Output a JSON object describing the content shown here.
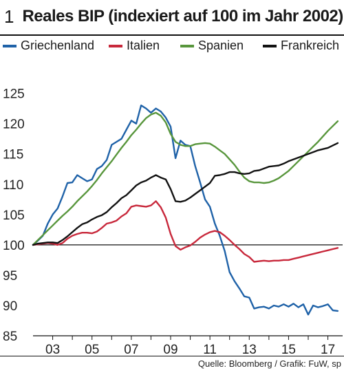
{
  "figure": {
    "number": "1",
    "title": "Reales BIP (indexiert auf 100 im Jahr 2002)",
    "source": "Quelle: Bloomberg / Grafik: FuW, sp"
  },
  "chart_data": {
    "type": "line",
    "title": "Reales BIP (indexiert auf 100 im Jahr 2002)",
    "xlabel": "",
    "ylabel": "",
    "xlim": [
      2002,
      2017.75
    ],
    "ylim": [
      85,
      127
    ],
    "x_ticks": [
      2003,
      2005,
      2007,
      2009,
      2011,
      2013,
      2015,
      2017
    ],
    "x_tick_labels": [
      "03",
      "05",
      "07",
      "09",
      "11",
      "13",
      "15",
      "17"
    ],
    "y_ticks": [
      85,
      90,
      95,
      100,
      105,
      110,
      115,
      120,
      125
    ],
    "y_tick_labels": [
      "85",
      "90",
      "95",
      "100",
      "105",
      "110",
      "115",
      "120",
      "125"
    ],
    "reference_line": 100,
    "grid": false,
    "legend_position": "top",
    "series": [
      {
        "name": "Griechenland",
        "color": "#1f62a8",
        "x": [
          2002,
          2002.25,
          2002.5,
          2002.75,
          2003,
          2003.25,
          2003.5,
          2003.75,
          2004,
          2004.25,
          2004.5,
          2004.75,
          2005,
          2005.25,
          2005.5,
          2005.75,
          2006,
          2006.25,
          2006.5,
          2006.75,
          2007,
          2007.25,
          2007.5,
          2007.75,
          2008,
          2008.25,
          2008.5,
          2008.75,
          2009,
          2009.25,
          2009.5,
          2009.75,
          2010,
          2010.25,
          2010.5,
          2010.75,
          2011,
          2011.25,
          2011.5,
          2011.75,
          2012,
          2012.25,
          2012.5,
          2012.75,
          2013,
          2013.25,
          2013.5,
          2013.75,
          2014,
          2014.25,
          2014.5,
          2014.75,
          2015,
          2015.25,
          2015.5,
          2015.75,
          2016,
          2016.25,
          2016.5,
          2016.75,
          2017,
          2017.25,
          2017.5
        ],
        "y": [
          100,
          100.7,
          101.5,
          103.5,
          105,
          106,
          108,
          110.2,
          110.3,
          111.5,
          111,
          110.5,
          110.8,
          112.5,
          113,
          114,
          116.5,
          117,
          117.5,
          119,
          120.5,
          120,
          123,
          122.5,
          121.8,
          122.5,
          122,
          121,
          119.5,
          114.3,
          117.2,
          116.5,
          116.3,
          113,
          110.3,
          107.5,
          106.3,
          103.5,
          101.5,
          99,
          95.5,
          94,
          92.8,
          91.5,
          91.3,
          89.5,
          89.7,
          89.8,
          89.5,
          90,
          89.8,
          90.2,
          89.8,
          90.3,
          89.7,
          90.2,
          88.5,
          90,
          89.7,
          89.9,
          90.2,
          89.2,
          89.1
        ]
      },
      {
        "name": "Italien",
        "color": "#c8283b",
        "x": [
          2002,
          2002.25,
          2002.5,
          2002.75,
          2003,
          2003.25,
          2003.5,
          2003.75,
          2004,
          2004.25,
          2004.5,
          2004.75,
          2005,
          2005.25,
          2005.5,
          2005.75,
          2006,
          2006.25,
          2006.5,
          2006.75,
          2007,
          2007.25,
          2007.5,
          2007.75,
          2008,
          2008.25,
          2008.5,
          2008.75,
          2009,
          2009.25,
          2009.5,
          2009.75,
          2010,
          2010.25,
          2010.5,
          2010.75,
          2011,
          2011.25,
          2011.5,
          2011.75,
          2012,
          2012.25,
          2012.5,
          2012.75,
          2013,
          2013.25,
          2013.5,
          2013.75,
          2014,
          2014.25,
          2014.5,
          2014.75,
          2015,
          2015.25,
          2015.5,
          2015.75,
          2016,
          2016.25,
          2016.5,
          2016.75,
          2017,
          2017.25,
          2017.5
        ],
        "y": [
          100,
          100.1,
          100.2,
          100.3,
          100.2,
          100,
          100.3,
          101,
          101.5,
          101.8,
          102,
          102,
          101.9,
          102.2,
          102.8,
          103.5,
          103.7,
          104,
          104.7,
          105.2,
          106.3,
          106.5,
          106.4,
          106.3,
          106.5,
          107.2,
          106.2,
          104.5,
          101.8,
          99.8,
          99.2,
          99.6,
          99.9,
          100.5,
          101.2,
          101.7,
          102.1,
          102.3,
          102.1,
          101.5,
          100.8,
          100,
          99.3,
          98.5,
          98,
          97.2,
          97.3,
          97.4,
          97.3,
          97.4,
          97.4,
          97.5,
          97.5,
          97.7,
          97.9,
          98.1,
          98.3,
          98.5,
          98.7,
          98.9,
          99.1,
          99.3,
          99.5
        ]
      },
      {
        "name": "Spanien",
        "color": "#58963c",
        "x": [
          2002,
          2002.25,
          2002.5,
          2002.75,
          2003,
          2003.25,
          2003.5,
          2003.75,
          2004,
          2004.25,
          2004.5,
          2004.75,
          2005,
          2005.25,
          2005.5,
          2005.75,
          2006,
          2006.25,
          2006.5,
          2006.75,
          2007,
          2007.25,
          2007.5,
          2007.75,
          2008,
          2008.25,
          2008.5,
          2008.75,
          2009,
          2009.25,
          2009.5,
          2009.75,
          2010,
          2010.25,
          2010.5,
          2010.75,
          2011,
          2011.25,
          2011.5,
          2011.75,
          2012,
          2012.25,
          2012.5,
          2012.75,
          2013,
          2013.25,
          2013.5,
          2013.75,
          2014,
          2014.25,
          2014.5,
          2014.75,
          2015,
          2015.25,
          2015.5,
          2015.75,
          2016,
          2016.25,
          2016.5,
          2016.75,
          2017,
          2017.25,
          2017.5
        ],
        "y": [
          100,
          100.8,
          101.6,
          102.4,
          103.2,
          104,
          104.8,
          105.5,
          106.3,
          107.2,
          108,
          108.8,
          109.7,
          110.7,
          111.8,
          112.8,
          113.8,
          114.9,
          116,
          117,
          118.1,
          119,
          120,
          120.9,
          121.5,
          121.8,
          121.3,
          120.2,
          118.3,
          117,
          116.5,
          116.3,
          116.3,
          116.6,
          116.7,
          116.8,
          116.7,
          116.2,
          115.6,
          115,
          114.1,
          113.2,
          112.1,
          111.1,
          110.5,
          110.3,
          110.3,
          110.2,
          110.3,
          110.6,
          111,
          111.6,
          112.2,
          113,
          113.8,
          114.6,
          115.4,
          116.2,
          117,
          117.9,
          118.8,
          119.6,
          120.4
        ]
      },
      {
        "name": "Frankreich",
        "color": "#111111",
        "x": [
          2002,
          2002.25,
          2002.5,
          2002.75,
          2003,
          2003.25,
          2003.5,
          2003.75,
          2004,
          2004.25,
          2004.5,
          2004.75,
          2005,
          2005.25,
          2005.5,
          2005.75,
          2006,
          2006.25,
          2006.5,
          2006.75,
          2007,
          2007.25,
          2007.5,
          2007.75,
          2008,
          2008.25,
          2008.5,
          2008.75,
          2009,
          2009.25,
          2009.5,
          2009.75,
          2010,
          2010.25,
          2010.5,
          2010.75,
          2011,
          2011.25,
          2011.5,
          2011.75,
          2012,
          2012.25,
          2012.5,
          2012.75,
          2013,
          2013.25,
          2013.5,
          2013.75,
          2014,
          2014.25,
          2014.5,
          2014.75,
          2015,
          2015.25,
          2015.5,
          2015.75,
          2016,
          2016.25,
          2016.5,
          2016.75,
          2017,
          2017.25,
          2017.5
        ],
        "y": [
          100,
          100.2,
          100.3,
          100.4,
          100.4,
          100.3,
          100.8,
          101.4,
          102.1,
          102.8,
          103.4,
          103.7,
          104.2,
          104.6,
          104.9,
          105.4,
          106.2,
          106.9,
          107.7,
          108.2,
          109,
          109.8,
          110.3,
          110.6,
          111.1,
          111.5,
          111.1,
          110.8,
          109.2,
          107.2,
          107.1,
          107.3,
          107.8,
          108.4,
          109,
          109.6,
          110.2,
          111.4,
          111.5,
          111.7,
          112,
          112,
          111.8,
          111.7,
          111.8,
          112.2,
          112.3,
          112.6,
          112.9,
          113,
          113.1,
          113.4,
          113.8,
          114.1,
          114.4,
          114.7,
          115,
          115.3,
          115.6,
          115.8,
          116,
          116.4,
          116.8
        ]
      }
    ]
  }
}
